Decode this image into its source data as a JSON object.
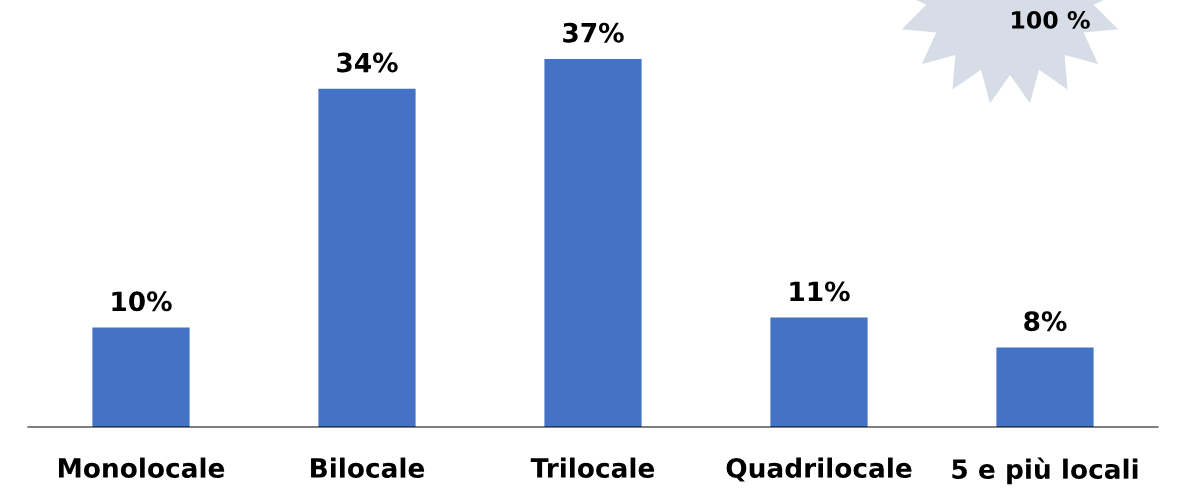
{
  "chart_data": {
    "type": "bar",
    "categories": [
      "Monolocale",
      "Bilocale",
      "Trilocale",
      "Quadrilocale",
      "5 e più locali"
    ],
    "values": [
      10,
      34,
      37,
      11,
      8
    ],
    "color": "#4472c4",
    "data_labels": true,
    "value_labels": [
      "10%",
      "34%",
      "37%",
      "11%",
      "8%"
    ],
    "annotations": [
      "100 %"
    ],
    "grid": false,
    "legend": false
  }
}
